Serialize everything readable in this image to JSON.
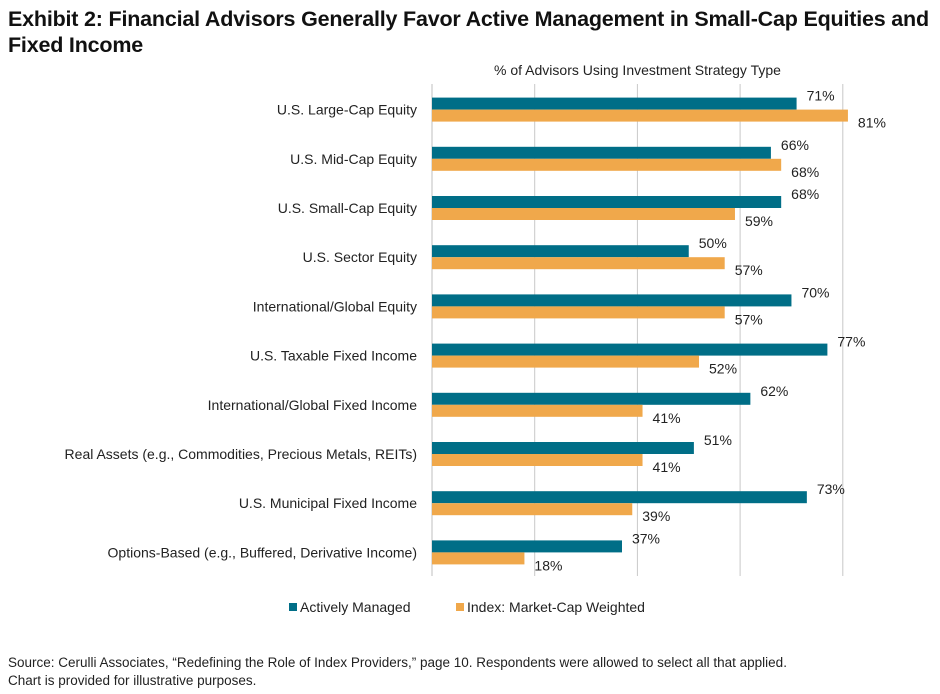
{
  "chart_data": {
    "type": "bar",
    "orientation": "horizontal",
    "title": "Exhibit 2: Financial Advisors Generally Favor Active Management in Small-Cap Equities and Fixed Income",
    "subtitle": "% of Advisors Using Investment Strategy Type",
    "xlabel": "",
    "ylabel": "",
    "xlim": [
      0,
      80
    ],
    "grid": true,
    "legend_position": "bottom",
    "categories": [
      "U.S. Large-Cap Equity",
      "U.S. Mid-Cap Equity",
      "U.S. Small-Cap Equity",
      "U.S. Sector Equity",
      "International/Global Equity",
      "U.S. Taxable Fixed Income",
      "International/Global Fixed Income",
      "Real Assets (e.g., Commodities, Precious Metals, REITs)",
      "U.S. Municipal Fixed Income",
      "Options-Based (e.g., Buffered, Derivative Income)"
    ],
    "series": [
      {
        "name": "Actively Managed",
        "color": "#006e87",
        "values": [
          71,
          66,
          68,
          50,
          70,
          77,
          62,
          51,
          73,
          37
        ]
      },
      {
        "name": "Index: Market-Cap Weighted",
        "color": "#f0a84b",
        "values": [
          81,
          68,
          59,
          57,
          57,
          52,
          41,
          41,
          39,
          18
        ]
      }
    ],
    "value_suffix": "%"
  },
  "source": {
    "line1": "Source: Cerulli Associates, “Redefining the Role of Index Providers,” page 10. Respondents were allowed to select all that applied.",
    "line2": "Chart is provided for illustrative purposes."
  }
}
